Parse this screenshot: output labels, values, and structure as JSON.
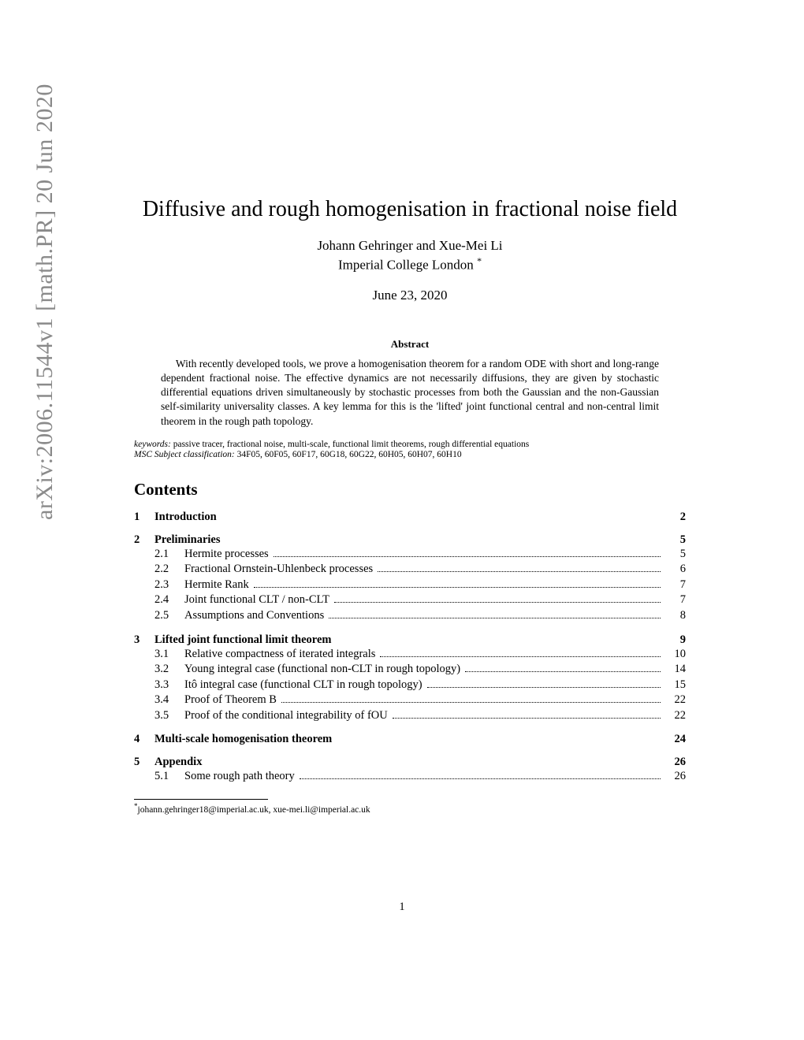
{
  "arxiv_stamp": "arXiv:2006.11544v1  [math.PR]  20 Jun 2020",
  "title": "Diffusive and rough homogenisation in fractional noise field",
  "authors": "Johann Gehringer and Xue-Mei Li",
  "affiliation": "Imperial College London",
  "affil_marker": "*",
  "date": "June 23, 2020",
  "abstract_heading": "Abstract",
  "abstract": "With recently developed tools, we prove a homogenisation theorem for a random ODE with short and long-range dependent fractional noise. The effective dynamics are not necessarily diffusions, they are given by stochastic differential equations driven simultaneously by stochastic processes from both the Gaussian and the non-Gaussian self-similarity universality classes. A key lemma for this is the 'lifted' joint functional central and non-central limit theorem in the rough path topology.",
  "keywords_label": "keywords:",
  "keywords": "passive tracer, fractional noise, multi-scale, functional limit theorems, rough differential equations",
  "msc_label": "MSC Subject classification:",
  "msc": "34F05, 60F05, 60F17, 60G18, 60G22, 60H05, 60H07, 60H10",
  "contents_heading": "Contents",
  "toc": [
    {
      "num": "1",
      "title": "Introduction",
      "page": "2",
      "subs": []
    },
    {
      "num": "2",
      "title": "Preliminaries",
      "page": "5",
      "subs": [
        {
          "num": "2.1",
          "title": "Hermite processes",
          "page": "5"
        },
        {
          "num": "2.2",
          "title": "Fractional Ornstein-Uhlenbeck processes",
          "page": "6"
        },
        {
          "num": "2.3",
          "title": "Hermite Rank",
          "page": "7"
        },
        {
          "num": "2.4",
          "title": "Joint functional CLT / non-CLT",
          "page": "7"
        },
        {
          "num": "2.5",
          "title": "Assumptions and Conventions",
          "page": "8"
        }
      ]
    },
    {
      "num": "3",
      "title": "Lifted joint functional limit theorem",
      "page": "9",
      "subs": [
        {
          "num": "3.1",
          "title": "Relative compactness of iterated integrals",
          "page": "10"
        },
        {
          "num": "3.2",
          "title": "Young integral case (functional non-CLT in rough topology)",
          "page": "14"
        },
        {
          "num": "3.3",
          "title": "Itô integral case (functional CLT in rough topology)",
          "page": "15"
        },
        {
          "num": "3.4",
          "title": "Proof of Theorem B",
          "page": "22"
        },
        {
          "num": "3.5",
          "title": "Proof of the conditional integrability of fOU",
          "page": "22"
        }
      ]
    },
    {
      "num": "4",
      "title": "Multi-scale homogenisation theorem",
      "page": "24",
      "subs": []
    },
    {
      "num": "5",
      "title": "Appendix",
      "page": "26",
      "subs": [
        {
          "num": "5.1",
          "title": "Some rough path theory",
          "page": "26"
        }
      ]
    }
  ],
  "footnote_marker": "*",
  "footnote": "johann.gehringer18@imperial.ac.uk, xue-mei.li@imperial.ac.uk",
  "page_number": "1"
}
